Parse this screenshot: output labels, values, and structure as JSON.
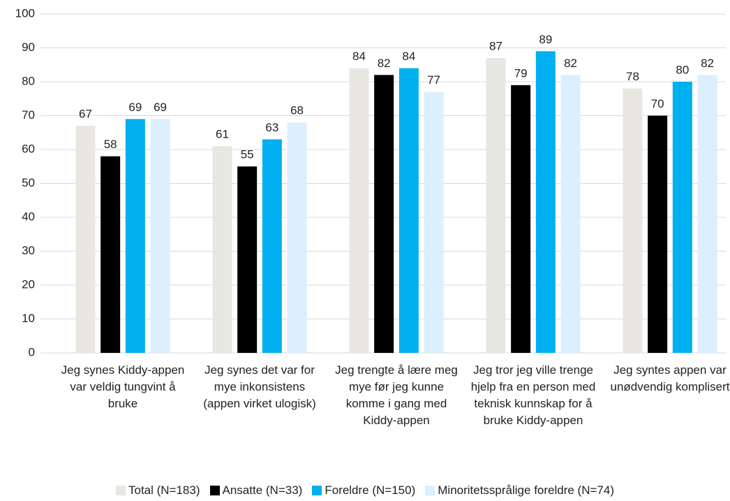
{
  "chart_data": {
    "type": "bar",
    "categories": [
      "Jeg synes Kiddy-appen var veldig tungvint å bruke",
      "Jeg synes det var for mye inkonsistens (appen virket ulogisk)",
      "Jeg trengte å lære meg mye før jeg kunne komme i gang med Kiddy-appen",
      "Jeg tror jeg ville trenge hjelp fra en person med teknisk kunnskap for å bruke Kiddy-appen",
      "Jeg syntes appen var unødvendig komplisert"
    ],
    "series": [
      {
        "name": "Total (N=183)",
        "color": "#e8e7e1",
        "values": [
          67,
          61,
          84,
          87,
          78
        ]
      },
      {
        "name": "Ansatte (N=33)",
        "color": "#000000",
        "values": [
          58,
          55,
          82,
          79,
          70
        ]
      },
      {
        "name": "Foreldre (N=150)",
        "color": "#00b0f0",
        "values": [
          69,
          63,
          84,
          89,
          80
        ]
      },
      {
        "name": "Minoritetssprålige foreldre (N=74)",
        "color": "#dcefff",
        "values": [
          69,
          68,
          77,
          82,
          82
        ]
      }
    ],
    "ylim": [
      0,
      100
    ],
    "yticks": [
      0,
      10,
      20,
      30,
      40,
      50,
      60,
      70,
      80,
      90,
      100
    ],
    "grid": true,
    "legend": "bottom"
  }
}
